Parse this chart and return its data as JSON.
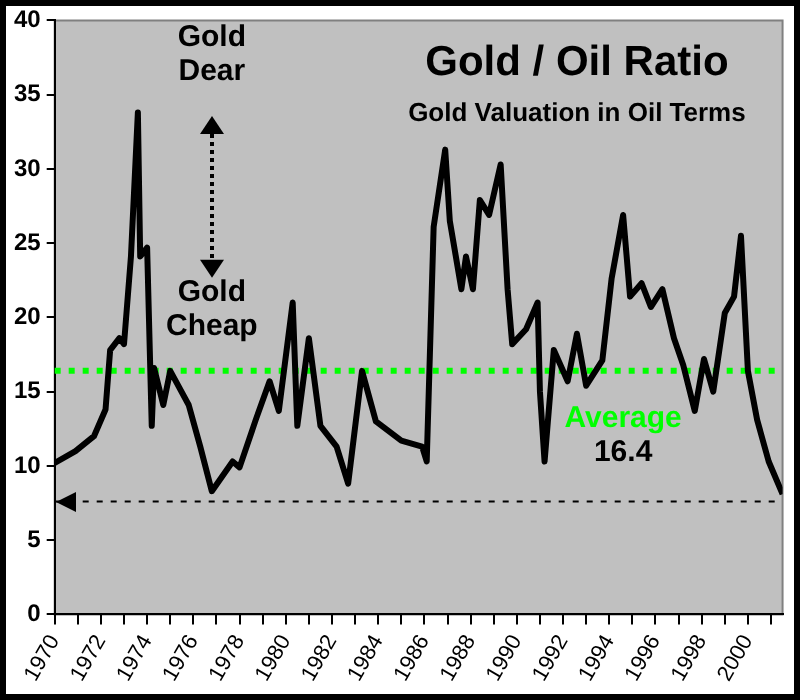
{
  "chart_data": {
    "type": "line",
    "title": "Gold / Oil Ratio",
    "subtitle": "Gold Valuation in Oil Terms",
    "x": [
      1970.0,
      1970.9,
      1971.7,
      1972.2,
      1972.4,
      1972.8,
      1973.0,
      1973.3,
      1973.6,
      1973.7,
      1974.0,
      1974.2,
      1974.3,
      1974.7,
      1975.0,
      1975.8,
      1976.3,
      1976.8,
      1977.7,
      1978.0,
      1978.7,
      1979.3,
      1979.7,
      1980.3,
      1980.5,
      1981.0,
      1981.5,
      1982.2,
      1982.7,
      1983.3,
      1983.9,
      1985.0,
      1985.9,
      1986.1,
      1986.4,
      1986.9,
      1987.1,
      1987.6,
      1987.8,
      1988.1,
      1988.4,
      1988.8,
      1989.3,
      1989.6,
      1989.8,
      1990.4,
      1990.9,
      1991.0,
      1991.2,
      1991.6,
      1992.2,
      1992.6,
      1993.0,
      1993.7,
      1994.1,
      1994.6,
      1994.9,
      1995.4,
      1995.8,
      1996.3,
      1996.8,
      1997.2,
      1997.7,
      1998.1,
      1998.5,
      1999.0,
      1999.4,
      1999.7,
      2000.0,
      2000.4,
      2000.9,
      2001.5
    ],
    "series": [
      {
        "color": "#000000",
        "values": [
          10.2,
          11.0,
          12.0,
          13.8,
          17.8,
          18.6,
          18.2,
          24.1,
          33.8,
          24.1,
          24.7,
          12.7,
          16.6,
          14.1,
          16.4,
          14.1,
          11.3,
          8.3,
          10.3,
          9.9,
          13.1,
          15.7,
          13.7,
          21.0,
          12.7,
          18.6,
          12.7,
          11.3,
          8.8,
          16.4,
          13.0,
          11.7,
          11.3,
          10.3,
          26.1,
          31.3,
          26.5,
          21.9,
          24.1,
          21.9,
          27.9,
          26.9,
          30.3,
          21.9,
          18.2,
          19.2,
          21.0,
          15.0,
          10.3,
          17.8,
          15.7,
          18.9,
          15.4,
          17.1,
          22.6,
          26.9,
          21.4,
          22.3,
          20.7,
          21.9,
          18.6,
          16.8,
          13.7,
          17.2,
          15.0,
          20.3,
          21.4,
          25.5,
          16.4,
          13.1,
          10.3,
          8.1
        ]
      }
    ],
    "xlim": [
      1970,
      2001.5
    ],
    "xticks": [
      1970,
      {
        "value": 1971,
        "label": null
      },
      1972,
      {
        "value": 1973,
        "label": null
      },
      1974,
      {
        "value": 1975,
        "label": null
      },
      1976,
      {
        "value": 1977,
        "label": null
      },
      1978,
      {
        "value": 1979,
        "label": null
      },
      1980,
      {
        "value": 1981,
        "label": null
      },
      1982,
      {
        "value": 1983,
        "label": null
      },
      1984,
      {
        "value": 1985,
        "label": null
      },
      1986,
      {
        "value": 1987,
        "label": null
      },
      1988,
      {
        "value": 1989,
        "label": null
      },
      1990,
      {
        "value": 1991,
        "label": null
      },
      1992,
      {
        "value": 1993,
        "label": null
      },
      1994,
      {
        "value": 1995,
        "label": null
      },
      1996,
      {
        "value": 1997,
        "label": null
      },
      1998,
      {
        "value": 1999,
        "label": null
      },
      2000,
      {
        "value": 2001,
        "label": null
      }
    ],
    "ylim": [
      0,
      40
    ],
    "yticks": [
      0,
      5,
      10,
      15,
      20,
      25,
      30,
      35,
      40
    ],
    "ref_lines": [
      {
        "axis": "y",
        "value": 16.4,
        "label": "Average",
        "color": "#00ff00",
        "line_style": "dotted"
      },
      {
        "axis": "y",
        "value": 7.6,
        "color": "#000000",
        "line_style": "dotted"
      }
    ],
    "annotations": [
      "Gold Dear",
      "Gold Cheap",
      "16.4"
    ],
    "grid": false,
    "legend": false,
    "marker": "none",
    "line_style": "solid"
  }
}
